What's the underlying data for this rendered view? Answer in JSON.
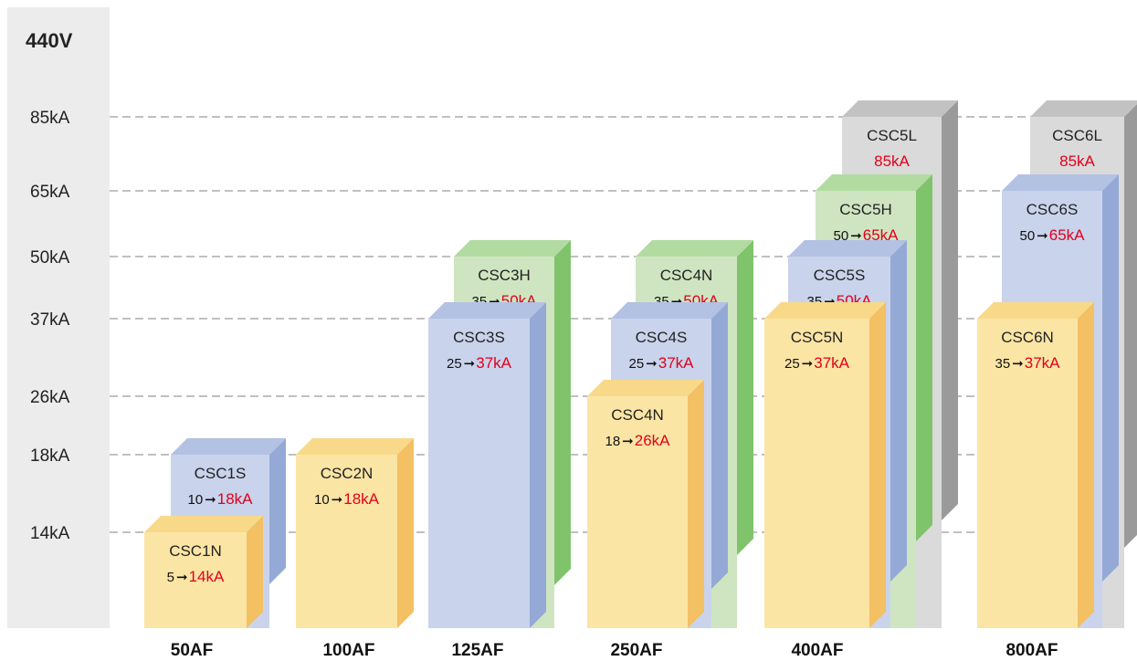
{
  "chart_data": {
    "type": "bar",
    "voltage_label": "440V",
    "y_ticks": [
      {
        "value": 14,
        "label": "14kA"
      },
      {
        "value": 18,
        "label": "18kA"
      },
      {
        "value": 26,
        "label": "26kA"
      },
      {
        "value": 37,
        "label": "37kA"
      },
      {
        "value": 50,
        "label": "50kA"
      },
      {
        "value": 65,
        "label": "65kA"
      },
      {
        "value": 85,
        "label": "85kA"
      }
    ],
    "categories": [
      "50AF",
      "100AF",
      "125AF",
      "250AF",
      "400AF",
      "800AF"
    ],
    "bars": [
      {
        "category": "50AF",
        "model": "CSC1S",
        "from": "10",
        "to": "18kA",
        "value": 18,
        "color": "#c9d3ec",
        "side": "#94a9d6",
        "top": "#b3c1e3"
      },
      {
        "category": "50AF",
        "model": "CSC1N",
        "from": "5",
        "to": "14kA",
        "value": 14,
        "color": "#fbe5a5",
        "side": "#f3c063",
        "top": "#f8d98a"
      },
      {
        "category": "100AF",
        "model": "CSC2N",
        "from": "10",
        "to": "18kA",
        "value": 18,
        "color": "#fbe5a5",
        "side": "#f3c063",
        "top": "#f8d98a"
      },
      {
        "category": "125AF",
        "model": "CSC3H",
        "from": "35",
        "to": "50kA",
        "value": 50,
        "color": "#cfe5c1",
        "side": "#7fc46b",
        "top": "#b2dba2"
      },
      {
        "category": "125AF",
        "model": "CSC3S",
        "from": "25",
        "to": "37kA",
        "value": 37,
        "color": "#c9d3ec",
        "side": "#94a9d6",
        "top": "#b3c1e3"
      },
      {
        "category": "250AF",
        "model": "CSC4N",
        "from": "35",
        "to": "50kA",
        "value": 50,
        "color": "#cfe5c1",
        "side": "#7fc46b",
        "top": "#b2dba2"
      },
      {
        "category": "250AF",
        "model": "CSC4S",
        "from": "25",
        "to": "37kA",
        "value": 37,
        "color": "#c9d3ec",
        "side": "#94a9d6",
        "top": "#b3c1e3"
      },
      {
        "category": "250AF",
        "model": "CSC4N",
        "from": "18",
        "to": "26kA",
        "value": 26,
        "color": "#fbe5a5",
        "side": "#f3c063",
        "top": "#f8d98a"
      },
      {
        "category": "400AF",
        "model": "CSC5L",
        "from": "",
        "to": "85kA",
        "value": 85,
        "color": "#dadada",
        "side": "#9a9a9a",
        "top": "#c2c2c2"
      },
      {
        "category": "400AF",
        "model": "CSC5H",
        "from": "50",
        "to": "65kA",
        "value": 65,
        "color": "#cfe5c1",
        "side": "#7fc46b",
        "top": "#b2dba2"
      },
      {
        "category": "400AF",
        "model": "CSC5S",
        "from": "35",
        "to": "50kA",
        "value": 50,
        "color": "#c9d3ec",
        "side": "#94a9d6",
        "top": "#b3c1e3"
      },
      {
        "category": "400AF",
        "model": "CSC5N",
        "from": "25",
        "to": "37kA",
        "value": 37,
        "color": "#fbe5a5",
        "side": "#f3c063",
        "top": "#f8d98a"
      },
      {
        "category": "800AF",
        "model": "CSC6L",
        "from": "",
        "to": "85kA",
        "value": 85,
        "color": "#dadada",
        "side": "#9a9a9a",
        "top": "#c2c2c2"
      },
      {
        "category": "800AF",
        "model": "CSC6S",
        "from": "50",
        "to": "65kA",
        "value": 65,
        "color": "#c9d3ec",
        "side": "#94a9d6",
        "top": "#b3c1e3"
      },
      {
        "category": "800AF",
        "model": "CSC6N",
        "from": "35",
        "to": "37kA",
        "value": 37,
        "color": "#fbe5a5",
        "side": "#f3c063",
        "top": "#f8d98a"
      }
    ],
    "arrow_symbol": "➞",
    "grid": true,
    "grid_style": "dashed",
    "axis_band_color": "#ececec",
    "gridline_color": "#9a9a9a"
  }
}
